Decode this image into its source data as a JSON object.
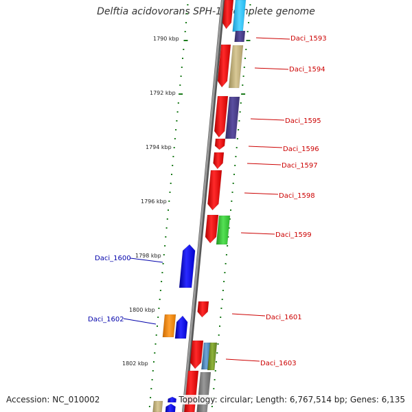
{
  "title": "Delftia acidovorans SPH-1, complete genome",
  "footer": {
    "accession": "Accession: NC_010002",
    "summary": "Topology: circular; Length: 6,767,514 bp; Genes: 6,135"
  },
  "scale_labels": [
    "1790 kbp",
    "1792 kbp",
    "1794 kbp",
    "1796 kbp",
    "1798 kbp",
    "1800 kbp",
    "1802 kbp"
  ],
  "gene_labels": {
    "right": [
      "Daci_1593",
      "Daci_1594",
      "Daci_1595",
      "Daci_1596",
      "Daci_1597",
      "Daci_1598",
      "Daci_1599",
      "Daci_1601",
      "Daci_1603"
    ],
    "left": [
      "Daci_1600",
      "Daci_1602"
    ]
  },
  "colors": {
    "backbone": "#888888",
    "ticks": "#1a7a1a",
    "right_label": "#cc0000",
    "left_label": "#0000aa",
    "red": "#ff0000",
    "blue": "#0000ff",
    "cyan": "#33ccff",
    "navy": "#4a3f8a",
    "khaki": "#c2b280",
    "green": "#33cc33",
    "orange": "#ff8800",
    "gray": "#777777",
    "steel": "#4682b4",
    "olive": "#6b8e23"
  }
}
